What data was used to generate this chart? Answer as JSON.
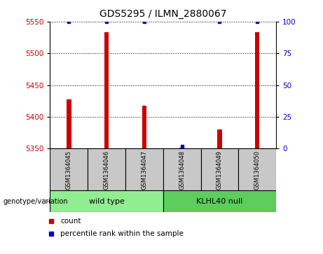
{
  "title": "GDS5295 / ILMN_2880067",
  "samples": [
    "GSM1364045",
    "GSM1364046",
    "GSM1364047",
    "GSM1364048",
    "GSM1364049",
    "GSM1364050"
  ],
  "count_values": [
    5428,
    5533,
    5418,
    5352,
    5380,
    5533
  ],
  "percentile_y_values": [
    100,
    100,
    100,
    2,
    100,
    100
  ],
  "ylim_left": [
    5350,
    5550
  ],
  "ylim_right": [
    0,
    100
  ],
  "yticks_left": [
    5350,
    5400,
    5450,
    5500,
    5550
  ],
  "yticks_right": [
    0,
    25,
    50,
    75,
    100
  ],
  "bar_color": "#cc0000",
  "dot_color": "#0000cc",
  "group_defs": [
    {
      "label": "wild type",
      "start": 0,
      "end": 3,
      "color": "#90ee90"
    },
    {
      "label": "KLHL40 null",
      "start": 3,
      "end": 6,
      "color": "#5dcd5d"
    }
  ],
  "left_label_color": "#cc0000",
  "right_label_color": "#0000cc",
  "genotype_label": "genotype/variation",
  "sample_box_color": "#c8c8c8",
  "background_color": "#ffffff"
}
